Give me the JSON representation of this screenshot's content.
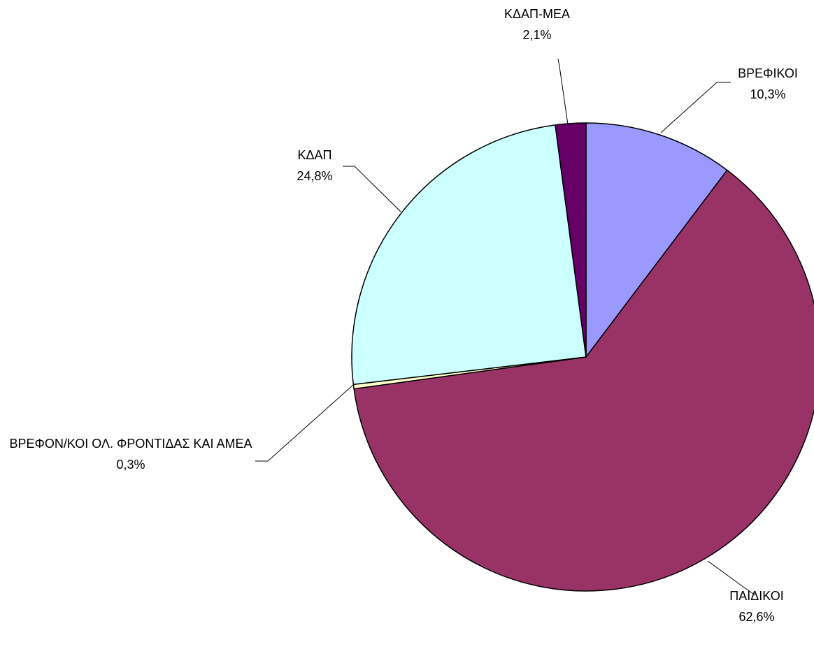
{
  "chart_data": {
    "type": "pie",
    "categories": [
      "ΒΡΕΦΙΚΟΙ",
      "ΠΑΙΔΙΚΟΙ",
      "ΒΡΕΦΟΝ/ΚΟΙ ΟΛ. ΦΡΟΝΤΙΔΑΣ ΚΑΙ ΑΜΕΑ",
      "ΚΔΑΠ",
      "ΚΔΑΠ-ΜΕΑ"
    ],
    "values": [
      10.3,
      62.6,
      0.3,
      24.8,
      2.1
    ],
    "value_labels": [
      "10,3%",
      "62,6%",
      "0,3%",
      "24,8%",
      "2,1%"
    ],
    "colors": [
      "#9999ff",
      "#993366",
      "#ffffcc",
      "#ccffff",
      "#660066"
    ]
  }
}
